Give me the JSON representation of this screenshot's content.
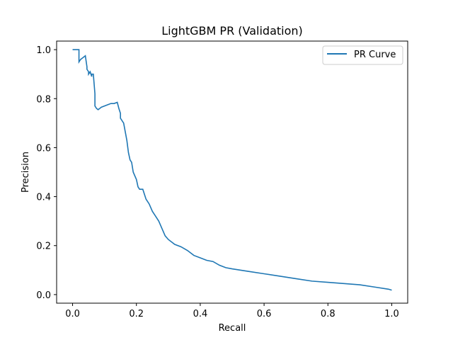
{
  "chart_data": {
    "type": "line",
    "title": "LightGBM PR (Validation)",
    "xlabel": "Recall",
    "ylabel": "Precision",
    "xlim": [
      -0.05,
      1.05
    ],
    "ylim": [
      -0.035,
      1.035
    ],
    "xticks": [
      0.0,
      0.2,
      0.4,
      0.6,
      0.8,
      1.0
    ],
    "xtick_labels": [
      "0.0",
      "0.2",
      "0.4",
      "0.6",
      "0.8",
      "1.0"
    ],
    "yticks": [
      0.0,
      0.2,
      0.4,
      0.6,
      0.8,
      1.0
    ],
    "ytick_labels": [
      "0.0",
      "0.2",
      "0.4",
      "0.6",
      "0.8",
      "1.0"
    ],
    "grid": false,
    "legend": {
      "position": "upper-right",
      "entries": [
        "PR Curve"
      ]
    },
    "series": [
      {
        "name": "PR Curve",
        "color": "#1f77b4",
        "x": [
          0.0,
          0.02,
          0.02,
          0.025,
          0.03,
          0.04,
          0.045,
          0.045,
          0.05,
          0.05,
          0.055,
          0.06,
          0.06,
          0.065,
          0.07,
          0.07,
          0.075,
          0.08,
          0.085,
          0.09,
          0.1,
          0.11,
          0.12,
          0.13,
          0.14,
          0.145,
          0.15,
          0.15,
          0.16,
          0.17,
          0.175,
          0.18,
          0.185,
          0.19,
          0.2,
          0.205,
          0.21,
          0.22,
          0.225,
          0.23,
          0.24,
          0.25,
          0.26,
          0.27,
          0.28,
          0.29,
          0.3,
          0.32,
          0.34,
          0.36,
          0.38,
          0.4,
          0.42,
          0.44,
          0.46,
          0.48,
          0.5,
          0.55,
          0.6,
          0.65,
          0.7,
          0.75,
          0.8,
          0.85,
          0.9,
          0.95,
          0.99,
          1.0
        ],
        "y": [
          1.0,
          1.0,
          0.95,
          0.96,
          0.965,
          0.975,
          0.93,
          0.92,
          0.91,
          0.9,
          0.91,
          0.89,
          0.9,
          0.9,
          0.82,
          0.77,
          0.76,
          0.755,
          0.76,
          0.765,
          0.77,
          0.775,
          0.78,
          0.78,
          0.785,
          0.76,
          0.74,
          0.72,
          0.7,
          0.63,
          0.58,
          0.55,
          0.54,
          0.5,
          0.47,
          0.44,
          0.43,
          0.43,
          0.41,
          0.39,
          0.37,
          0.34,
          0.32,
          0.3,
          0.27,
          0.24,
          0.225,
          0.205,
          0.195,
          0.18,
          0.16,
          0.15,
          0.14,
          0.135,
          0.12,
          0.11,
          0.105,
          0.095,
          0.085,
          0.075,
          0.065,
          0.055,
          0.05,
          0.045,
          0.04,
          0.03,
          0.022,
          0.018
        ]
      }
    ]
  }
}
